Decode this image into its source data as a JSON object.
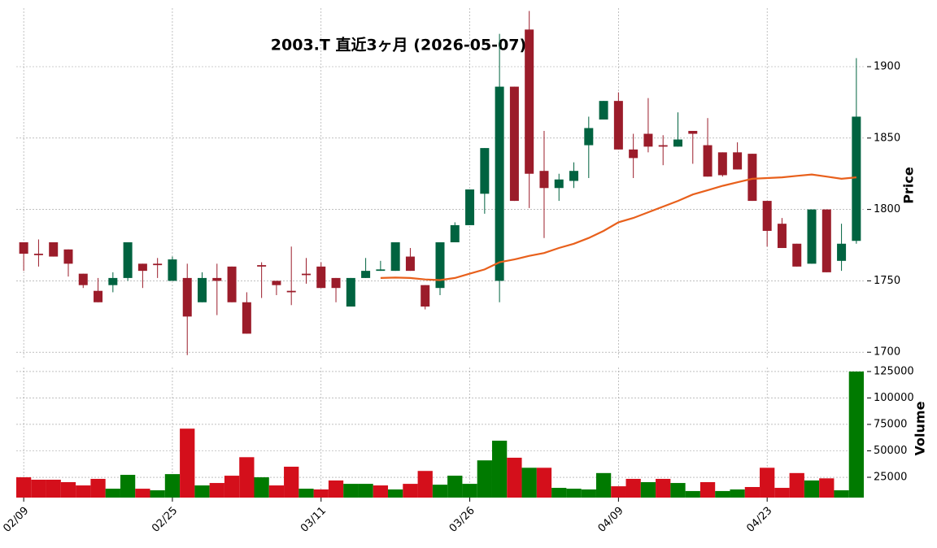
{
  "chart_data": {
    "type": "candlestick",
    "title": "2003.T  直近3ヶ月 (2026-05-07)",
    "categories": [
      "02/09",
      null,
      null,
      null,
      null,
      null,
      null,
      null,
      null,
      null,
      "02/25",
      null,
      null,
      null,
      null,
      null,
      null,
      null,
      null,
      null,
      "03/11",
      null,
      null,
      null,
      null,
      null,
      null,
      null,
      null,
      null,
      "03/26",
      null,
      null,
      null,
      null,
      null,
      null,
      null,
      null,
      null,
      "04/09",
      null,
      null,
      null,
      null,
      null,
      null,
      null,
      null,
      null,
      "04/23",
      null,
      null,
      null,
      null,
      null,
      null
    ],
    "open": [
      1777,
      1769,
      1777,
      1772,
      1755,
      1743,
      1747,
      1752,
      1762,
      1762,
      1750,
      1752,
      1735,
      1752,
      1760,
      1735,
      1761,
      1750,
      1743,
      1755,
      1760,
      1752,
      1732,
      1752,
      1757,
      1757,
      1767,
      1747,
      1745,
      1777,
      1789,
      1811,
      1750,
      1886,
      1926,
      1827,
      1815,
      1820,
      1845,
      1863,
      1876,
      1842,
      1853,
      1845,
      1844,
      1855,
      1845,
      1840,
      1840,
      1839,
      1806,
      1790,
      1776,
      1762,
      1800,
      1764,
      1778
    ],
    "high": [
      1777,
      1779,
      1777,
      1772,
      1755,
      1752,
      1756,
      1777,
      1762,
      1766,
      1767,
      1762,
      1756,
      1762,
      1760,
      1742,
      1763,
      1750,
      1774,
      1766,
      1763,
      1752,
      1752,
      1766,
      1764,
      1777,
      1773,
      1747,
      1777,
      1791,
      1814,
      1843,
      1923,
      1886,
      1939,
      1855,
      1825,
      1833,
      1865,
      1876,
      1882,
      1853,
      1878,
      1852,
      1868,
      1855,
      1864,
      1840,
      1847,
      1839,
      1806,
      1794,
      1776,
      1800,
      1800,
      1790,
      1906
    ],
    "low": [
      1757,
      1760,
      1767,
      1753,
      1745,
      1735,
      1742,
      1750,
      1745,
      1752,
      1750,
      1698,
      1735,
      1726,
      1735,
      1713,
      1738,
      1740,
      1733,
      1748,
      1745,
      1735,
      1732,
      1752,
      1757,
      1757,
      1757,
      1730,
      1740,
      1777,
      1789,
      1797,
      1735,
      1806,
      1801,
      1780,
      1806,
      1815,
      1822,
      1863,
      1842,
      1822,
      1840,
      1831,
      1844,
      1832,
      1823,
      1823,
      1828,
      1806,
      1774,
      1773,
      1760,
      1762,
      1756,
      1757,
      1776
    ],
    "close": [
      1769,
      1768,
      1767,
      1762,
      1747,
      1735,
      1752,
      1777,
      1757,
      1761,
      1765,
      1725,
      1752,
      1750,
      1735,
      1713,
      1760,
      1747,
      1742,
      1754,
      1745,
      1745,
      1752,
      1757,
      1758,
      1777,
      1757,
      1732,
      1777,
      1789,
      1814,
      1843,
      1886,
      1806,
      1825,
      1815,
      1821,
      1827,
      1857,
      1876,
      1842,
      1836,
      1844,
      1844,
      1849,
      1853,
      1823,
      1824,
      1828,
      1806,
      1785,
      1773,
      1760,
      1800,
      1756,
      1776,
      1865
    ],
    "up_color": "#006340",
    "down_color": "#9b1c2a",
    "ylabel": "Price",
    "ylim": [
      1695,
      1941
    ],
    "yticks": [
      1700,
      1750,
      1800,
      1850,
      1900
    ],
    "grid": true,
    "ma": {
      "color": "#e8601c",
      "values": [
        null,
        null,
        null,
        null,
        null,
        null,
        null,
        null,
        null,
        null,
        null,
        null,
        null,
        null,
        null,
        null,
        null,
        null,
        null,
        null,
        null,
        null,
        null,
        null,
        1752,
        1752.3,
        1752,
        1751,
        1750.5,
        1752,
        1755,
        1758,
        1763,
        1765,
        1767.5,
        1769.5,
        1773,
        1776,
        1780,
        1785,
        1791,
        1794,
        1798,
        1802,
        1806,
        1810.5,
        1813.5,
        1816.5,
        1819,
        1821.5,
        1822,
        1822.5,
        1823.5,
        1824.5,
        1823,
        1821.5,
        1822.5
      ]
    },
    "volume": {
      "ylabel": "Volume",
      "ylim": [
        5800,
        128800
      ],
      "yticks": [
        25000,
        50000,
        75000,
        100000,
        125000
      ],
      "values": [
        25000,
        22700,
        22700,
        20400,
        17300,
        23500,
        14200,
        27300,
        14200,
        12700,
        28000,
        71000,
        17300,
        19600,
        26500,
        44000,
        25000,
        17300,
        35000,
        14200,
        13500,
        22000,
        18800,
        18800,
        17300,
        13500,
        18800,
        31000,
        18000,
        26500,
        18800,
        41000,
        59600,
        43500,
        34000,
        34000,
        15000,
        14200,
        13500,
        29000,
        16500,
        23500,
        20400,
        23500,
        19600,
        12000,
        20400,
        12000,
        13500,
        15800,
        34000,
        15000,
        29000,
        22000,
        24000,
        12700,
        125000
      ],
      "colors": [
        "#d40f1b",
        "#d40f1b",
        "#d40f1b",
        "#d40f1b",
        "#d40f1b",
        "#d40f1b",
        "#007a00",
        "#007a00",
        "#d40f1b",
        "#007a00",
        "#007a00",
        "#d40f1b",
        "#007a00",
        "#d40f1b",
        "#d40f1b",
        "#d40f1b",
        "#007a00",
        "#d40f1b",
        "#d40f1b",
        "#007a00",
        "#d40f1b",
        "#d40f1b",
        "#007a00",
        "#007a00",
        "#d40f1b",
        "#007a00",
        "#d40f1b",
        "#d40f1b",
        "#007a00",
        "#007a00",
        "#007a00",
        "#007a00",
        "#007a00",
        "#d40f1b",
        "#007a00",
        "#d40f1b",
        "#007a00",
        "#007a00",
        "#007a00",
        "#007a00",
        "#d40f1b",
        "#d40f1b",
        "#007a00",
        "#d40f1b",
        "#007a00",
        "#007a00",
        "#d40f1b",
        "#007a00",
        "#007a00",
        "#d40f1b",
        "#d40f1b",
        "#d40f1b",
        "#d40f1b",
        "#007a00",
        "#d40f1b",
        "#007a00",
        "#007a00"
      ]
    }
  }
}
